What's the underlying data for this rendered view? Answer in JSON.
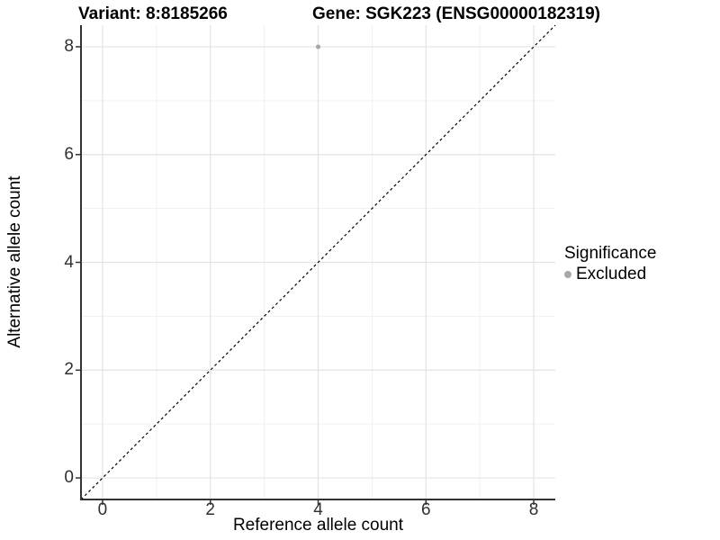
{
  "title": {
    "variant": "Variant: 8:8185266",
    "gene": "Gene: SGK223 (ENSG00000182319)"
  },
  "axes": {
    "x_label": "Reference allele count",
    "y_label": "Alternative allele count"
  },
  "legend": {
    "title": "Significance",
    "items": [
      {
        "label": "Excluded",
        "color": "#a8a8a8"
      }
    ]
  },
  "colors": {
    "background": "#ffffff",
    "major_grid": "#e3e3e3",
    "minor_grid": "#f1f1f1",
    "axis_line": "#333333",
    "tick_mark": "#333333",
    "tick_label": "#303030",
    "reference_line": "#000000",
    "point": "#a8a8a8"
  },
  "chart_data": {
    "type": "scatter",
    "title": "Variant: 8:8185266   Gene: SGK223 (ENSG00000182319)",
    "xlabel": "Reference allele count",
    "ylabel": "Alternative allele count",
    "xlim": [
      -0.4,
      8.4
    ],
    "ylim": [
      -0.4,
      8.4
    ],
    "x_ticks": [
      0,
      2,
      4,
      6,
      8
    ],
    "y_ticks": [
      0,
      2,
      4,
      6,
      8
    ],
    "x_minor_ticks": [
      1,
      3,
      5,
      7
    ],
    "y_minor_ticks": [
      1,
      3,
      5,
      7
    ],
    "grid": true,
    "legend_position": "right",
    "series": [
      {
        "name": "Excluded",
        "color": "#a8a8a8",
        "points": [
          {
            "x": 4,
            "y": 8
          }
        ]
      }
    ],
    "reference_line": {
      "type": "identity",
      "equation": "y = x",
      "style": "dashed",
      "color": "#000000"
    }
  }
}
